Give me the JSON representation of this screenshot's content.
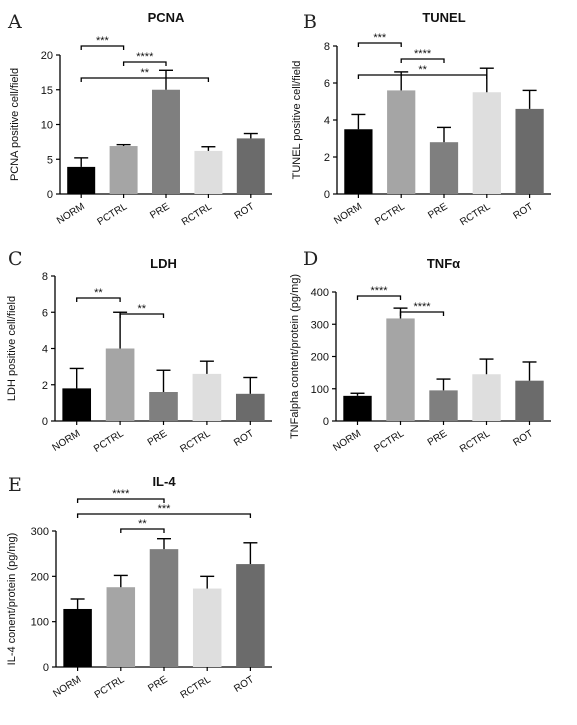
{
  "chart_data": [
    {
      "type": "bar",
      "panel": "A",
      "title": "PCNA",
      "ylabel": "PCNA positive cell/field",
      "categories": [
        "NORM",
        "PCTRL",
        "PRE",
        "RCTRL",
        "ROT"
      ],
      "values": [
        3.9,
        6.9,
        15.0,
        6.2,
        8.0
      ],
      "errors": [
        1.3,
        0.2,
        2.8,
        0.6,
        0.7
      ],
      "colors": [
        "#000000",
        "#a5a5a5",
        "#7f7f7f",
        "#dedede",
        "#6b6b6b"
      ],
      "ylim": [
        0,
        20
      ],
      "yticks": [
        0,
        5,
        10,
        15,
        20
      ],
      "significance": [
        {
          "from": 0,
          "to": 1,
          "label": "***"
        },
        {
          "from": 1,
          "to": 2,
          "label": "****"
        },
        {
          "from": 0,
          "to": 3,
          "label": "**"
        }
      ]
    },
    {
      "type": "bar",
      "panel": "B",
      "title": "TUNEL",
      "ylabel": "TUNEL positive cell/field",
      "categories": [
        "NORM",
        "PCTRL",
        "PRE",
        "RCTRL",
        "ROT"
      ],
      "values": [
        3.5,
        5.6,
        2.8,
        5.5,
        4.6
      ],
      "errors": [
        0.8,
        1.0,
        0.8,
        1.3,
        1.0
      ],
      "colors": [
        "#000000",
        "#a5a5a5",
        "#7f7f7f",
        "#dedede",
        "#6b6b6b"
      ],
      "ylim": [
        0,
        8
      ],
      "yticks": [
        0,
        2,
        4,
        6,
        8
      ],
      "significance": [
        {
          "from": 0,
          "to": 1,
          "label": "***"
        },
        {
          "from": 1,
          "to": 2,
          "label": "****"
        },
        {
          "from": 0,
          "to": 3,
          "label": "**"
        }
      ]
    },
    {
      "type": "bar",
      "panel": "C",
      "title": "LDH",
      "ylabel": "LDH positive cell/field",
      "categories": [
        "NORM",
        "PCTRL",
        "PRE",
        "RCTRL",
        "ROT"
      ],
      "values": [
        1.8,
        4.0,
        1.6,
        2.6,
        1.5
      ],
      "errors": [
        1.1,
        2.0,
        1.2,
        0.7,
        0.9
      ],
      "colors": [
        "#000000",
        "#a5a5a5",
        "#7f7f7f",
        "#dedede",
        "#6b6b6b"
      ],
      "ylim": [
        0,
        8
      ],
      "yticks": [
        0,
        2,
        4,
        6,
        8
      ],
      "significance": [
        {
          "from": 0,
          "to": 1,
          "label": "**"
        },
        {
          "from": 1,
          "to": 2,
          "label": "**"
        }
      ]
    },
    {
      "type": "bar",
      "panel": "D",
      "title": "TNFα",
      "ylabel": "TNFalpha content/protein (pg/mg)",
      "categories": [
        "NORM",
        "PCTRL",
        "PRE",
        "RCTRL",
        "ROT"
      ],
      "values": [
        78,
        318,
        95,
        145,
        125
      ],
      "errors": [
        8,
        32,
        35,
        47,
        58
      ],
      "colors": [
        "#000000",
        "#a5a5a5",
        "#7f7f7f",
        "#dedede",
        "#6b6b6b"
      ],
      "ylim": [
        0,
        400
      ],
      "yticks": [
        0,
        100,
        200,
        300,
        400
      ],
      "significance": [
        {
          "from": 0,
          "to": 1,
          "label": "****"
        },
        {
          "from": 1,
          "to": 2,
          "label": "****"
        }
      ]
    },
    {
      "type": "bar",
      "panel": "E",
      "title": "IL-4",
      "ylabel": "IL-4 conent/protein (pg/mg)",
      "categories": [
        "NORM",
        "PCTRL",
        "PRE",
        "RCTRL",
        "ROT"
      ],
      "values": [
        128,
        176,
        260,
        173,
        227
      ],
      "errors": [
        22,
        26,
        23,
        27,
        47
      ],
      "colors": [
        "#000000",
        "#a5a5a5",
        "#7f7f7f",
        "#dedede",
        "#6b6b6b"
      ],
      "ylim": [
        0,
        300
      ],
      "yticks": [
        0,
        100,
        200,
        300
      ],
      "significance": [
        {
          "from": 0,
          "to": 2,
          "label": "****"
        },
        {
          "from": 0,
          "to": 4,
          "label": "***"
        },
        {
          "from": 1,
          "to": 2,
          "label": "**"
        }
      ]
    }
  ]
}
